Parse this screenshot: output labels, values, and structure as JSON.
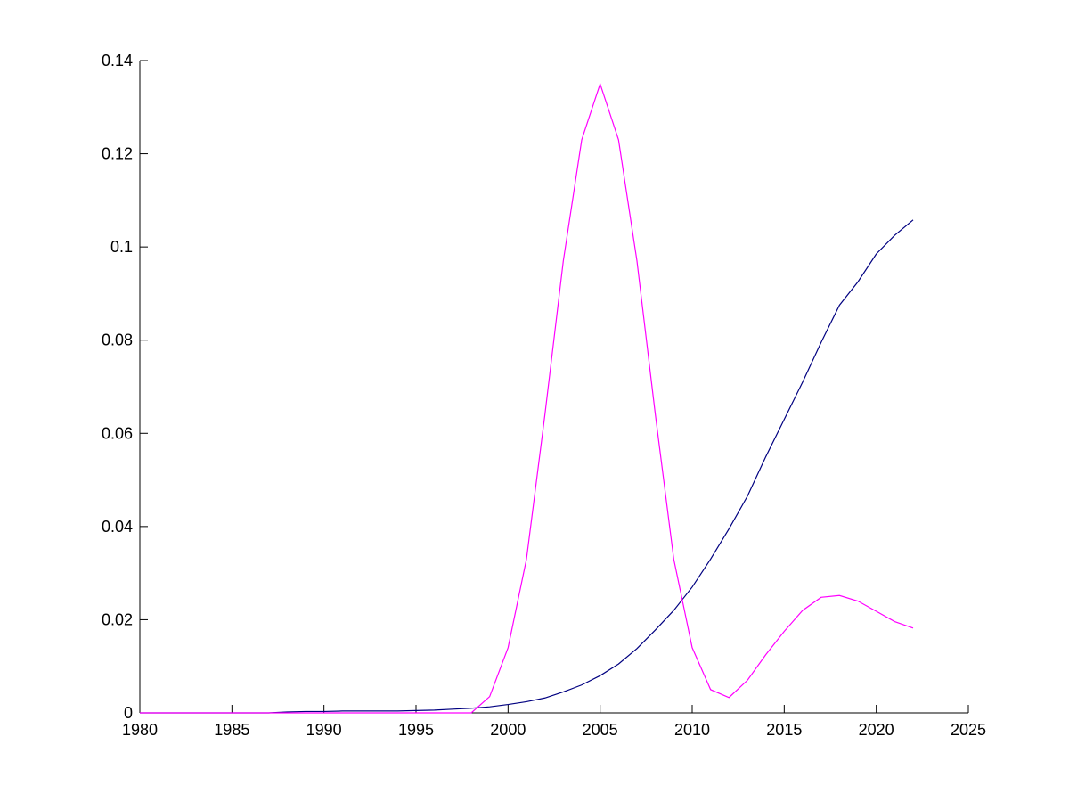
{
  "chart_data": {
    "type": "line",
    "x": [
      1980,
      1981,
      1982,
      1983,
      1984,
      1985,
      1986,
      1987,
      1988,
      1989,
      1990,
      1991,
      1992,
      1993,
      1994,
      1995,
      1996,
      1997,
      1998,
      1999,
      2000,
      2001,
      2002,
      2003,
      2004,
      2005,
      2006,
      2007,
      2008,
      2009,
      2010,
      2011,
      2012,
      2013,
      2014,
      2015,
      2016,
      2017,
      2018,
      2019,
      2020,
      2021,
      2022
    ],
    "series": [
      {
        "color": "#000080",
        "values": [
          0,
          0,
          0,
          0,
          0,
          0,
          0,
          0,
          0.0002,
          0.0003,
          0.0003,
          0.0004,
          0.0004,
          0.0004,
          0.0004,
          0.0005,
          0.0006,
          0.0008,
          0.001,
          0.0013,
          0.0018,
          0.0024,
          0.0032,
          0.0045,
          0.006,
          0.008,
          0.0105,
          0.0138,
          0.0178,
          0.022,
          0.027,
          0.033,
          0.0395,
          0.0465,
          0.055,
          0.063,
          0.071,
          0.0795,
          0.0875,
          0.0925,
          0.0985,
          0.1025,
          0.1058
        ]
      },
      {
        "color": "#ff00ff",
        "values": [
          0,
          0,
          0,
          0,
          0,
          0,
          0,
          0,
          0,
          0,
          0,
          0,
          0,
          0,
          0,
          0,
          0,
          0,
          0,
          0.0035,
          0.014,
          0.033,
          0.064,
          0.097,
          0.123,
          0.135,
          0.123,
          0.097,
          0.064,
          0.033,
          0.014,
          0.005,
          0.0033,
          0.007,
          0.0125,
          0.0175,
          0.022,
          0.0248,
          0.0252,
          0.024,
          0.0218,
          0.0196,
          0.0182
        ]
      }
    ],
    "xlim": [
      1980,
      2025
    ],
    "xticks": [
      1980,
      1985,
      1990,
      1995,
      2000,
      2005,
      2010,
      2015,
      2020,
      2025
    ],
    "ylim": [
      0,
      0.14
    ],
    "yticks": [
      0,
      0.02,
      0.04,
      0.06,
      0.08,
      0.1,
      0.12,
      0.14
    ],
    "grid": false
  }
}
